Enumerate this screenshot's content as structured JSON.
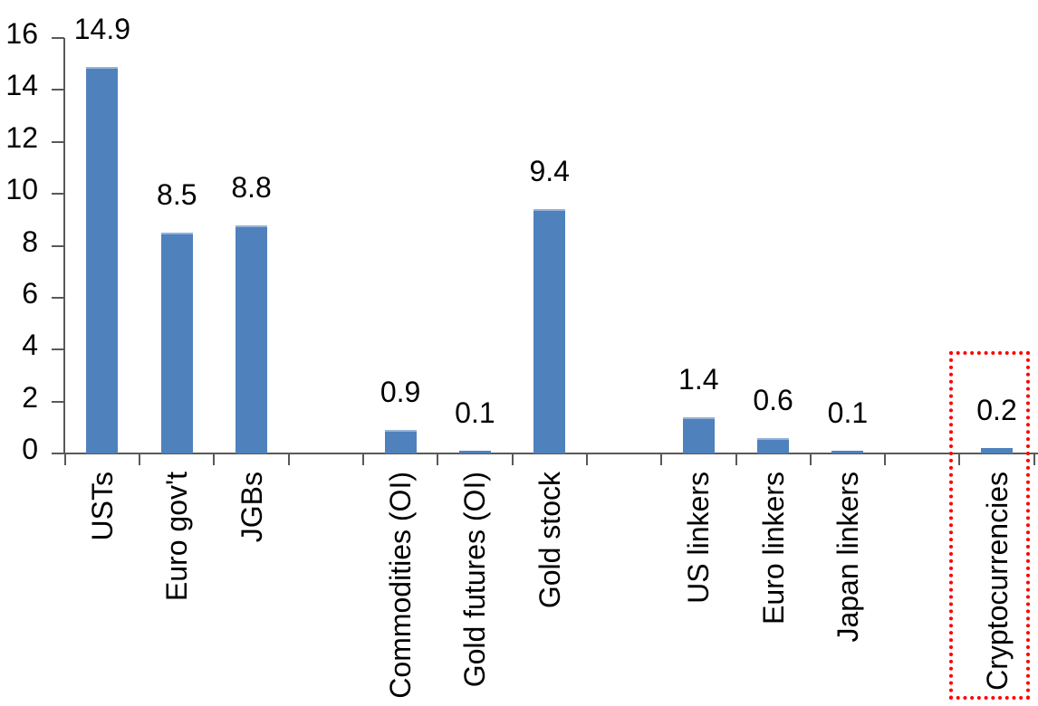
{
  "chart_data": {
    "type": "bar",
    "title": "",
    "xlabel": "",
    "ylabel": "",
    "categories": [
      "USTs",
      "Euro gov't",
      "JGBs",
      "Commodities (OI)",
      "Gold futures (OI)",
      "Gold stock",
      "US linkers",
      "Euro linkers",
      "Japan linkers",
      "Cryptocurrencies"
    ],
    "values": [
      14.9,
      8.5,
      8.8,
      0.9,
      0.1,
      9.4,
      1.4,
      0.6,
      0.1,
      0.2
    ],
    "value_labels": [
      "14.9",
      "8.5",
      "8.8",
      "0.9",
      "0.1",
      "9.4",
      "1.4",
      "0.6",
      "0.1",
      "0.2"
    ],
    "slot_index": [
      0,
      1,
      2,
      4,
      5,
      6,
      8,
      9,
      10,
      12
    ],
    "total_slots": 13,
    "ylim": [
      0,
      16
    ],
    "yticks": [
      0,
      2,
      4,
      6,
      8,
      10,
      12,
      14,
      16
    ],
    "ytick_labels": [
      "0",
      "2",
      "4",
      "6",
      "8",
      "10",
      "12",
      "14",
      "16"
    ],
    "grid": false,
    "legend": false,
    "bar_color": "#4f81bd",
    "bar_top_edge_color": "#95b3d7",
    "axis_color": "#595959",
    "text_color": "#000000",
    "highlight": {
      "category": "Cryptocurrencies",
      "box_color": "#ff0000",
      "box_style": "dotted"
    }
  }
}
